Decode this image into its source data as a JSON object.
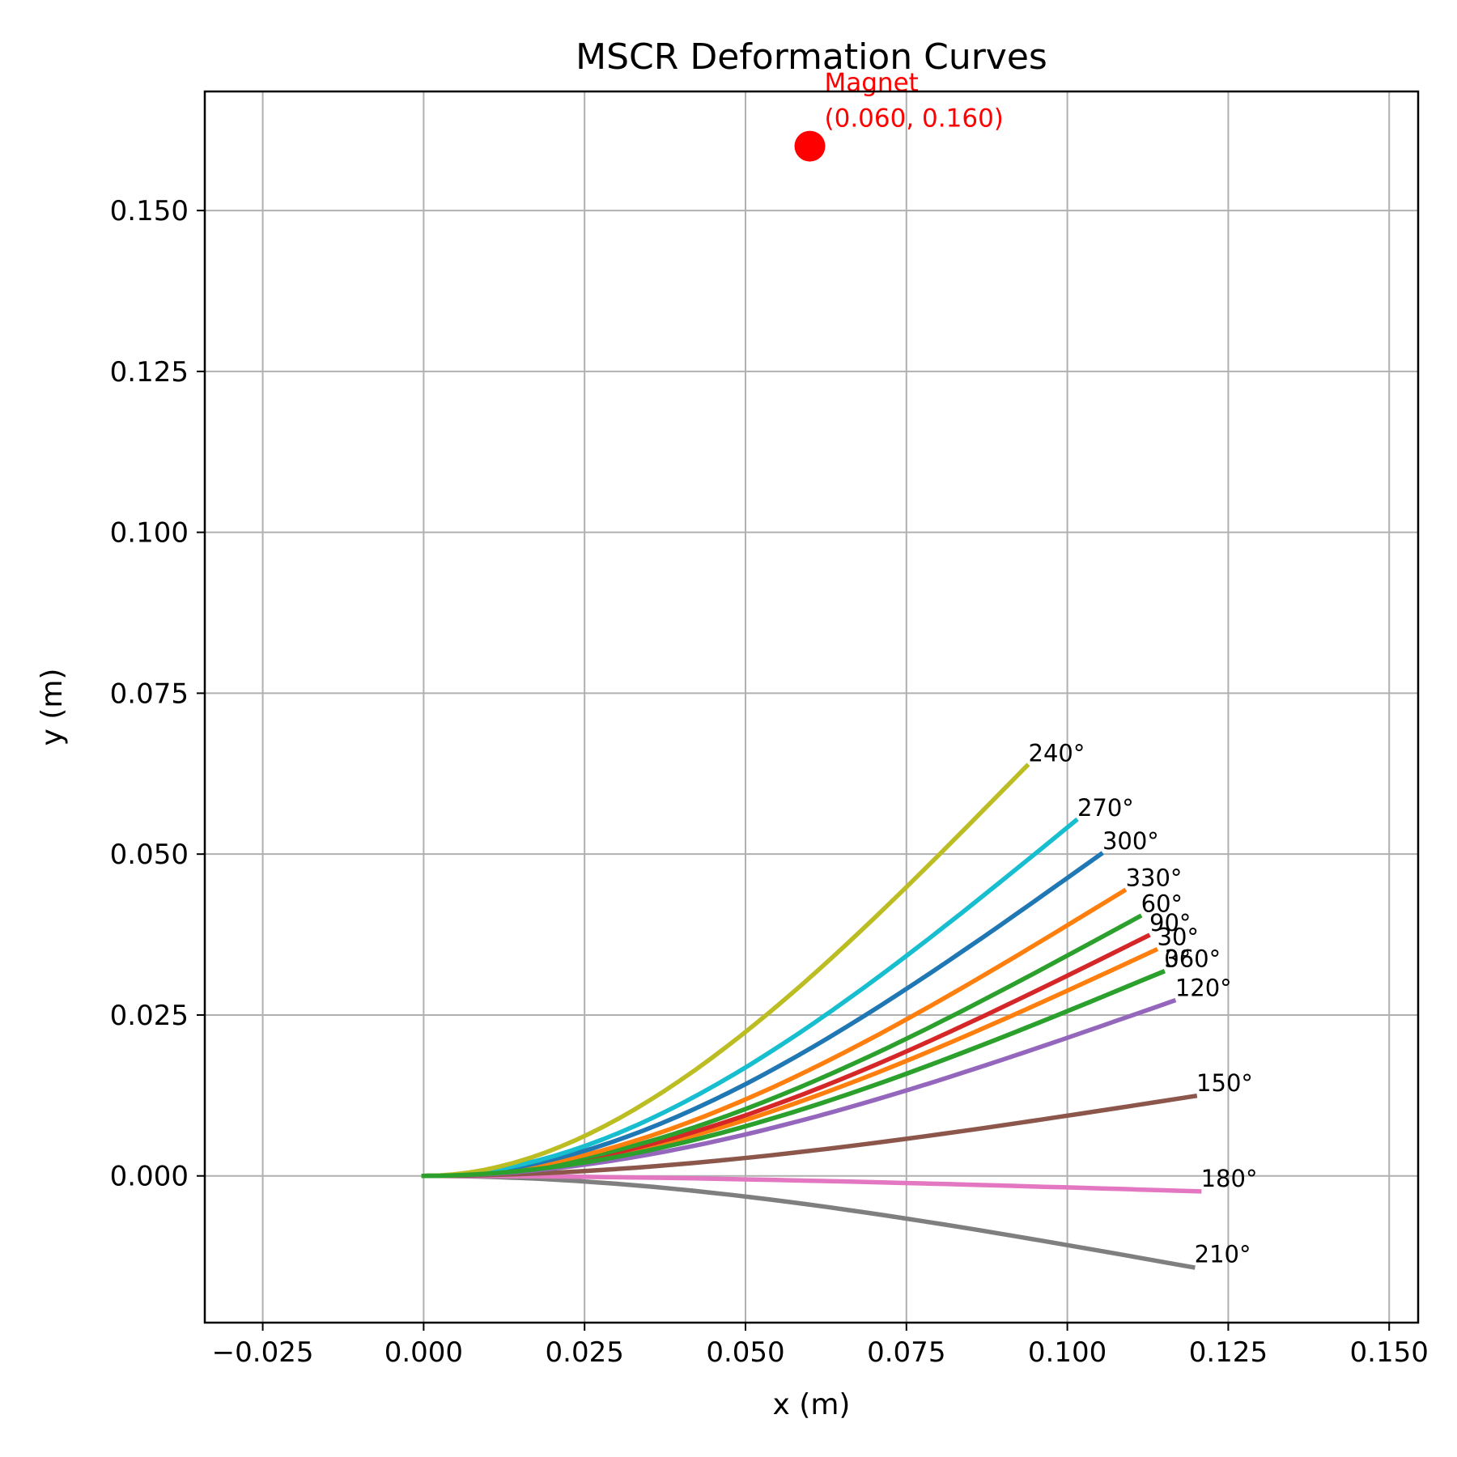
{
  "chart_data": {
    "type": "line",
    "title": "MSCR Deformation Curves",
    "xlabel": "x (m)",
    "ylabel": "y (m)",
    "xlim": [
      -0.034,
      0.1545
    ],
    "ylim": [
      -0.0228,
      0.1685
    ],
    "xticks": [
      -0.025,
      0.0,
      0.025,
      0.05,
      0.075,
      0.1,
      0.125,
      0.15
    ],
    "xtick_labels": [
      "−0.025",
      "0.000",
      "0.025",
      "0.050",
      "0.075",
      "0.100",
      "0.125",
      "0.150"
    ],
    "yticks": [
      0.0,
      0.025,
      0.05,
      0.075,
      0.1,
      0.125,
      0.15
    ],
    "ytick_labels": [
      "0.000",
      "0.025",
      "0.050",
      "0.075",
      "0.100",
      "0.125",
      "0.150"
    ],
    "grid": true,
    "magnet": {
      "x": 0.06,
      "y": 0.16,
      "color": "#ff0000",
      "label_line1": "Magnet",
      "label_line2": "(0.060, 0.160)"
    },
    "series": [
      {
        "name": "210°",
        "color": "#7f7f7f",
        "end": [
          0.1195,
          -0.0142
        ]
      },
      {
        "name": "180°",
        "color": "#e377c2",
        "end": [
          0.1205,
          -0.0024
        ]
      },
      {
        "name": "150°",
        "color": "#8c564b",
        "end": [
          0.1198,
          0.0124
        ]
      },
      {
        "name": "120°",
        "color": "#9467bd",
        "end": [
          0.1165,
          0.0272
        ]
      },
      {
        "name": "360°",
        "color": "#2ca02c",
        "end": [
          0.1148,
          0.0317
        ]
      },
      {
        "name": "30°",
        "color": "#ff7f0e",
        "end": [
          0.1137,
          0.0351
        ]
      },
      {
        "name": "90°",
        "color": "#d62728",
        "end": [
          0.1125,
          0.0373
        ]
      },
      {
        "name": "60°",
        "color": "#2ca02c",
        "end": [
          0.1112,
          0.0403
        ]
      },
      {
        "name": "330°",
        "color": "#ff7f0e",
        "end": [
          0.1088,
          0.0443
        ]
      },
      {
        "name": "300°",
        "color": "#1f77b4",
        "end": [
          0.1052,
          0.05
        ]
      },
      {
        "name": "270°",
        "color": "#17becf",
        "end": [
          0.1013,
          0.0552
        ]
      },
      {
        "name": "240°",
        "color": "#bcbd22",
        "end": [
          0.0937,
          0.0637
        ]
      },
      {
        "name": "0°",
        "color": "#2ca02c",
        "end": [
          0.1148,
          0.0317
        ]
      }
    ]
  }
}
